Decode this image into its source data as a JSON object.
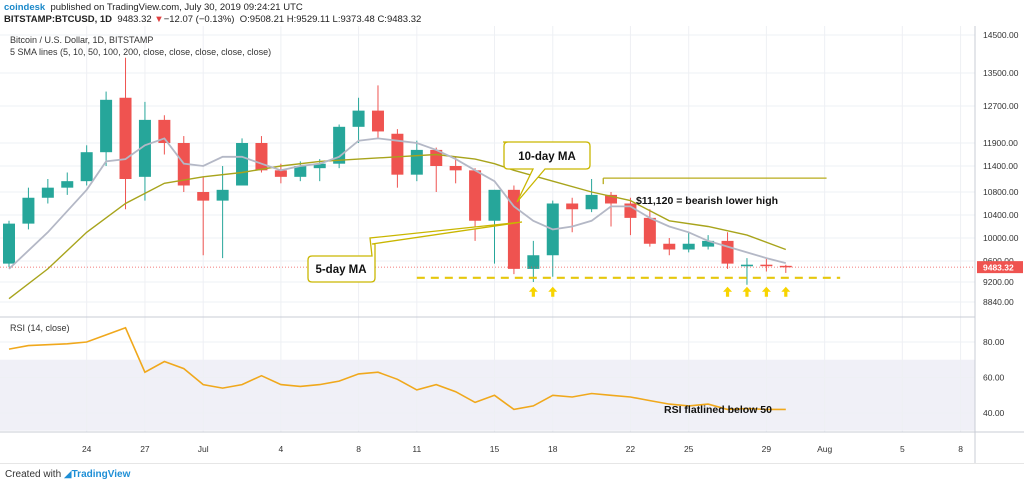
{
  "header": {
    "source": "coindesk",
    "published": "published on TradingView.com, July 30, 2019 09:24:21 UTC",
    "symbol": "BITSTAMP:BTCUSD, 1D",
    "last": "9483.32",
    "change_arrow": "▼",
    "change": "−12.07 (−0.13%)",
    "ohlc": "O:9508.21 H:9529.11 L:9373.48 C:9483.32"
  },
  "footer": {
    "created_with": "Created with",
    "brand": "TradingView"
  },
  "colors": {
    "up": "#26a69a",
    "down": "#ef5350",
    "sma5": "#b4b8c6",
    "sma10": "#a8a41c",
    "rsi": "#f0a81c",
    "support": "#e6c70d",
    "price_tag": "#ef5350",
    "arrow": "#f7d400"
  },
  "chart_data": [
    {
      "type": "candlestick",
      "title": "Bitcoin / U.S. Dollar, 1D, BITSTAMP",
      "subtitle": "5 SMA lines (5, 10, 50, 100, 200, close, close, close, close, close)",
      "y_ticks": [
        "14500.00",
        "13500.00",
        "12700.00",
        "11900.00",
        "11400.00",
        "10800.00",
        "10400.00",
        "10000.00",
        "9600.00",
        "9200.00",
        "8840.00"
      ],
      "y_tick_values": [
        14500,
        13500,
        12700,
        11900,
        11400,
        10800,
        10400,
        10000,
        9600,
        9200,
        8840
      ],
      "last_price_tag": "9483.32",
      "x_ticks": [
        {
          "label": "24",
          "day": 24
        },
        {
          "label": "27",
          "day": 27
        },
        {
          "label": "Jul",
          "day": 30
        },
        {
          "label": "4",
          "day": 34
        },
        {
          "label": "8",
          "day": 38
        },
        {
          "label": "11",
          "day": 41
        },
        {
          "label": "15",
          "day": 45
        },
        {
          "label": "18",
          "day": 48
        },
        {
          "label": "22",
          "day": 52
        },
        {
          "label": "25",
          "day": 55
        },
        {
          "label": "29",
          "day": 59
        },
        {
          "label": "Aug",
          "day": 62
        },
        {
          "label": "5",
          "day": 66
        },
        {
          "label": "8",
          "day": 69
        }
      ],
      "candles": [
        {
          "day": 20,
          "o": 9550,
          "h": 10300,
          "l": 9480,
          "c": 10250
        },
        {
          "day": 21,
          "o": 10250,
          "h": 10900,
          "l": 10150,
          "c": 10700
        },
        {
          "day": 22,
          "o": 10700,
          "h": 11100,
          "l": 10600,
          "c": 10900
        },
        {
          "day": 23,
          "o": 10900,
          "h": 11250,
          "l": 10750,
          "c": 11050
        },
        {
          "day": 24,
          "o": 11050,
          "h": 11850,
          "l": 10950,
          "c": 11700
        },
        {
          "day": 25,
          "o": 11700,
          "h": 13050,
          "l": 11400,
          "c": 12850
        },
        {
          "day": 26,
          "o": 12900,
          "h": 13900,
          "l": 10500,
          "c": 11100
        },
        {
          "day": 27,
          "o": 11150,
          "h": 12800,
          "l": 10650,
          "c": 12400
        },
        {
          "day": 28,
          "o": 12400,
          "h": 12500,
          "l": 11650,
          "c": 11900
        },
        {
          "day": 29,
          "o": 11900,
          "h": 12050,
          "l": 10800,
          "c": 10950
        },
        {
          "day": 30,
          "o": 10800,
          "h": 11150,
          "l": 9700,
          "c": 10650
        },
        {
          "day": 31,
          "o": 10650,
          "h": 11400,
          "l": 9650,
          "c": 10850
        },
        {
          "day": 32,
          "o": 10950,
          "h": 12000,
          "l": 10950,
          "c": 11900
        },
        {
          "day": 33,
          "o": 11900,
          "h": 12050,
          "l": 11250,
          "c": 11300
        },
        {
          "day": 34,
          "o": 11300,
          "h": 11450,
          "l": 11000,
          "c": 11150
        },
        {
          "day": 35,
          "o": 11150,
          "h": 11500,
          "l": 11050,
          "c": 11400
        },
        {
          "day": 36,
          "o": 11350,
          "h": 11550,
          "l": 11050,
          "c": 11450
        },
        {
          "day": 37,
          "o": 11450,
          "h": 12300,
          "l": 11350,
          "c": 12250
        },
        {
          "day": 38,
          "o": 12250,
          "h": 12900,
          "l": 11900,
          "c": 12600
        },
        {
          "day": 39,
          "o": 12600,
          "h": 13200,
          "l": 12000,
          "c": 12150
        },
        {
          "day": 40,
          "o": 12100,
          "h": 12200,
          "l": 10900,
          "c": 11200
        },
        {
          "day": 41,
          "o": 11200,
          "h": 11950,
          "l": 11050,
          "c": 11750
        },
        {
          "day": 42,
          "o": 11750,
          "h": 11800,
          "l": 10800,
          "c": 11400
        },
        {
          "day": 43,
          "o": 11400,
          "h": 11600,
          "l": 11000,
          "c": 11300
        },
        {
          "day": 44,
          "o": 11300,
          "h": 11350,
          "l": 9950,
          "c": 10300
        },
        {
          "day": 45,
          "o": 10300,
          "h": 10850,
          "l": 9550,
          "c": 10850
        },
        {
          "day": 46,
          "o": 10850,
          "h": 10950,
          "l": 9350,
          "c": 9450
        },
        {
          "day": 47,
          "o": 9450,
          "h": 9950,
          "l": 9200,
          "c": 9700
        },
        {
          "day": 48,
          "o": 9700,
          "h": 10650,
          "l": 9300,
          "c": 10600
        },
        {
          "day": 49,
          "o": 10600,
          "h": 10700,
          "l": 10100,
          "c": 10500
        },
        {
          "day": 50,
          "o": 10500,
          "h": 11100,
          "l": 10450,
          "c": 10750
        },
        {
          "day": 51,
          "o": 10750,
          "h": 10800,
          "l": 10200,
          "c": 10600
        },
        {
          "day": 52,
          "o": 10600,
          "h": 10700,
          "l": 10050,
          "c": 10350
        },
        {
          "day": 53,
          "o": 10350,
          "h": 10500,
          "l": 9850,
          "c": 9900
        },
        {
          "day": 54,
          "o": 9900,
          "h": 10000,
          "l": 9700,
          "c": 9800
        },
        {
          "day": 55,
          "o": 9800,
          "h": 10100,
          "l": 9750,
          "c": 9900
        },
        {
          "day": 56,
          "o": 9850,
          "h": 10050,
          "l": 9800,
          "c": 9950
        },
        {
          "day": 57,
          "o": 9950,
          "h": 10100,
          "l": 9450,
          "c": 9550
        },
        {
          "day": 58,
          "o": 9500,
          "h": 9650,
          "l": 9150,
          "c": 9530
        },
        {
          "day": 59,
          "o": 9530,
          "h": 9650,
          "l": 9400,
          "c": 9510
        },
        {
          "day": 60,
          "o": 9508,
          "h": 9529,
          "l": 9373,
          "c": 9483
        }
      ],
      "sma5": [
        [
          20,
          9450
        ],
        [
          22,
          10100
        ],
        [
          24,
          10850
        ],
        [
          25,
          11500
        ],
        [
          26,
          11550
        ],
        [
          27,
          11850
        ],
        [
          28,
          12000
        ],
        [
          29,
          11450
        ],
        [
          30,
          11400
        ],
        [
          31,
          11600
        ],
        [
          32,
          11600
        ],
        [
          33,
          11450
        ],
        [
          34,
          11300
        ],
        [
          35,
          11400
        ],
        [
          36,
          11450
        ],
        [
          37,
          11600
        ],
        [
          38,
          11950
        ],
        [
          39,
          12000
        ],
        [
          40,
          11950
        ],
        [
          41,
          11900
        ],
        [
          42,
          11750
        ],
        [
          43,
          11550
        ],
        [
          44,
          11300
        ],
        [
          45,
          11050
        ],
        [
          46,
          10550
        ],
        [
          47,
          10300
        ],
        [
          48,
          10150
        ],
        [
          49,
          10200
        ],
        [
          50,
          10300
        ],
        [
          51,
          10550
        ],
        [
          52,
          10550
        ],
        [
          53,
          10350
        ],
        [
          54,
          10200
        ],
        [
          55,
          10100
        ],
        [
          56,
          9950
        ],
        [
          57,
          9850
        ],
        [
          58,
          9750
        ],
        [
          59,
          9650
        ],
        [
          60,
          9560
        ]
      ],
      "sma10": [
        [
          20,
          8900
        ],
        [
          22,
          9450
        ],
        [
          24,
          10100
        ],
        [
          26,
          10600
        ],
        [
          28,
          11000
        ],
        [
          30,
          11150
        ],
        [
          32,
          11250
        ],
        [
          34,
          11400
        ],
        [
          36,
          11500
        ],
        [
          38,
          11550
        ],
        [
          40,
          11600
        ],
        [
          42,
          11650
        ],
        [
          44,
          11550
        ],
        [
          45,
          11450
        ],
        [
          46,
          11300
        ],
        [
          48,
          11050
        ],
        [
          50,
          10800
        ],
        [
          52,
          10650
        ],
        [
          54,
          10300
        ],
        [
          56,
          10200
        ],
        [
          58,
          10050
        ],
        [
          60,
          9800
        ]
      ],
      "annotations": {
        "ma10": "10-day MA",
        "ma5": "5-day MA",
        "lower_high": "$11,120 = bearish lower high",
        "lower_high_value": 11120,
        "support_value": 9280,
        "arrow_days": [
          47,
          48,
          57,
          58,
          59,
          60
        ]
      }
    },
    {
      "type": "line",
      "title": "RSI (14, close)",
      "y_ticks": [
        "80.00",
        "60.00",
        "40.00"
      ],
      "y_tick_values": [
        80,
        60,
        40
      ],
      "band": [
        30,
        70
      ],
      "annotation": "RSI flatlined below 50",
      "rsi": [
        [
          20,
          76
        ],
        [
          21,
          78
        ],
        [
          22,
          78.5
        ],
        [
          23,
          79
        ],
        [
          24,
          80
        ],
        [
          25,
          84
        ],
        [
          26,
          88
        ],
        [
          27,
          63
        ],
        [
          28,
          69
        ],
        [
          29,
          65
        ],
        [
          30,
          56
        ],
        [
          31,
          54
        ],
        [
          32,
          56
        ],
        [
          33,
          61
        ],
        [
          34,
          56
        ],
        [
          35,
          55
        ],
        [
          36,
          56
        ],
        [
          37,
          58
        ],
        [
          38,
          62
        ],
        [
          39,
          63
        ],
        [
          40,
          59
        ],
        [
          41,
          53
        ],
        [
          42,
          56
        ],
        [
          43,
          52
        ],
        [
          44,
          46
        ],
        [
          45,
          50
        ],
        [
          46,
          42
        ],
        [
          47,
          44
        ],
        [
          48,
          50
        ],
        [
          49,
          49
        ],
        [
          50,
          51
        ],
        [
          51,
          50
        ],
        [
          52,
          49
        ],
        [
          53,
          47
        ],
        [
          54,
          45
        ],
        [
          55,
          44
        ],
        [
          56,
          45
        ],
        [
          57,
          42
        ],
        [
          58,
          42.5
        ],
        [
          59,
          42
        ],
        [
          60,
          42
        ]
      ]
    }
  ]
}
